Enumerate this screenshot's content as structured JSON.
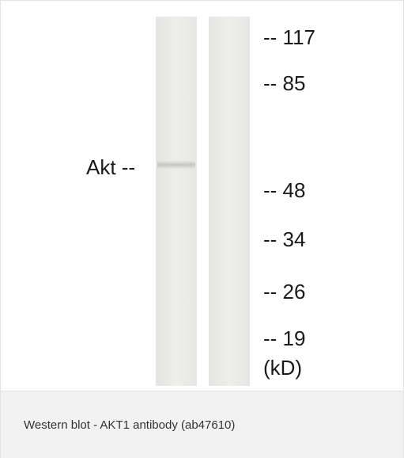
{
  "blot": {
    "band_label": "Akt --",
    "markers": [
      "-- 117",
      "-- 85",
      "-- 48",
      "-- 34",
      "-- 26",
      "-- 19"
    ],
    "unit": "(kD)"
  },
  "caption": "Western blot - AKT1 antibody (ab47610)"
}
